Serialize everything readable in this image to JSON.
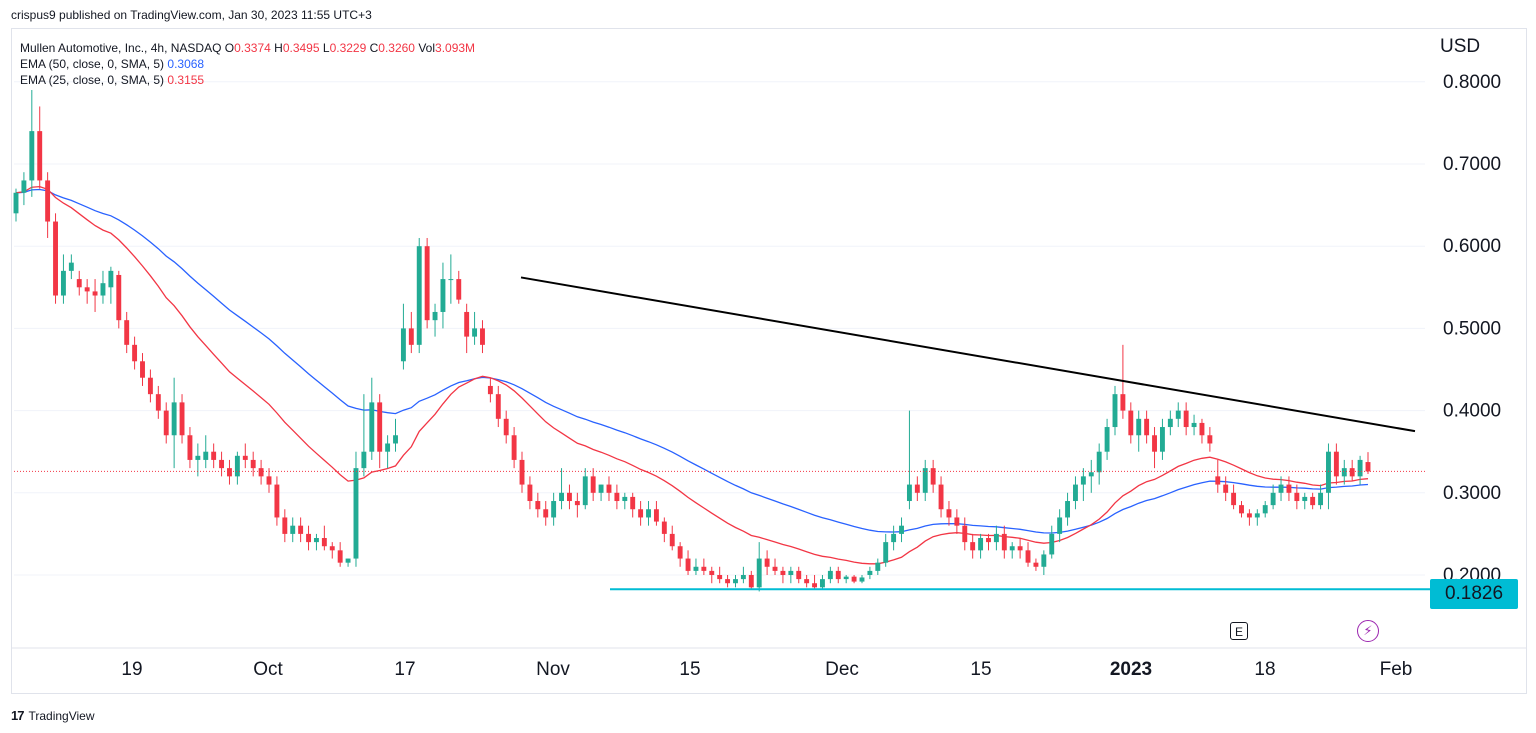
{
  "publisher_line": "crispus9 published on TradingView.com, Jan 30, 2023 11:55 UTC+3",
  "legend": {
    "symbol": "Mullen Automotive, Inc., 4h, NASDAQ",
    "o_label": "O",
    "o_value": "0.3374",
    "h_label": "H",
    "h_value": "0.3495",
    "l_label": "L",
    "l_value": "0.3229",
    "c_label": "C",
    "c_value": "0.3260",
    "vol_label": "Vol",
    "vol_value": "3.093M",
    "ema50_label": "EMA (50, close, 0, SMA, 5)",
    "ema50_value": "0.3068",
    "ema25_label": "EMA (25, close, 0, SMA, 5)",
    "ema25_value": "0.3155"
  },
  "currency": "USD",
  "support_label": "0.1826",
  "earnings_marker": "E",
  "brand": "TradingView",
  "colors": {
    "up": "#22ab94",
    "down": "#f23645",
    "ema50": "#2962ff",
    "ema25": "#f23645",
    "trendline": "#000000",
    "support": "#00bcd4",
    "grid": "#f0f3fa",
    "axis_text": "#131722"
  },
  "chart_data": {
    "type": "candlestick",
    "yaxis": {
      "ticks": [
        "0.2000",
        "0.3000",
        "0.4000",
        "0.5000",
        "0.6000",
        "0.7000",
        "0.8000"
      ],
      "ylim": [
        0.12,
        0.86
      ]
    },
    "xaxis": {
      "ticks": [
        "19",
        "Oct",
        "17",
        "Nov",
        "15",
        "Dec",
        "15",
        "2023",
        "18",
        "Feb"
      ]
    },
    "last_close": 0.326,
    "support_level": 0.1826,
    "trendline": {
      "from": {
        "date": "Oct 28",
        "price": 0.562
      },
      "to": {
        "date": "Jan 31",
        "price": 0.375
      }
    },
    "ohlc": [
      [
        0.64,
        0.67,
        0.63,
        0.665
      ],
      [
        0.665,
        0.69,
        0.65,
        0.68
      ],
      [
        0.68,
        0.79,
        0.66,
        0.74
      ],
      [
        0.74,
        0.77,
        0.67,
        0.68
      ],
      [
        0.68,
        0.69,
        0.61,
        0.63
      ],
      [
        0.63,
        0.64,
        0.53,
        0.54
      ],
      [
        0.54,
        0.59,
        0.53,
        0.57
      ],
      [
        0.57,
        0.59,
        0.56,
        0.58
      ],
      [
        0.56,
        0.57,
        0.54,
        0.55
      ],
      [
        0.55,
        0.56,
        0.53,
        0.545
      ],
      [
        0.545,
        0.56,
        0.52,
        0.54
      ],
      [
        0.54,
        0.57,
        0.53,
        0.555
      ],
      [
        0.55,
        0.575,
        0.53,
        0.57
      ],
      [
        0.565,
        0.57,
        0.5,
        0.51
      ],
      [
        0.51,
        0.52,
        0.47,
        0.48
      ],
      [
        0.48,
        0.49,
        0.45,
        0.46
      ],
      [
        0.46,
        0.47,
        0.43,
        0.44
      ],
      [
        0.44,
        0.45,
        0.41,
        0.42
      ],
      [
        0.42,
        0.43,
        0.39,
        0.4
      ],
      [
        0.4,
        0.41,
        0.36,
        0.37
      ],
      [
        0.37,
        0.44,
        0.33,
        0.41
      ],
      [
        0.41,
        0.42,
        0.36,
        0.37
      ],
      [
        0.37,
        0.38,
        0.33,
        0.34
      ],
      [
        0.34,
        0.36,
        0.32,
        0.345
      ],
      [
        0.34,
        0.37,
        0.33,
        0.35
      ],
      [
        0.35,
        0.36,
        0.33,
        0.34
      ],
      [
        0.34,
        0.35,
        0.32,
        0.33
      ],
      [
        0.33,
        0.34,
        0.31,
        0.32
      ],
      [
        0.32,
        0.35,
        0.31,
        0.345
      ],
      [
        0.345,
        0.36,
        0.33,
        0.34
      ],
      [
        0.34,
        0.35,
        0.32,
        0.33
      ],
      [
        0.33,
        0.34,
        0.31,
        0.32
      ],
      [
        0.32,
        0.33,
        0.3,
        0.31
      ],
      [
        0.31,
        0.32,
        0.26,
        0.27
      ],
      [
        0.27,
        0.28,
        0.24,
        0.25
      ],
      [
        0.25,
        0.27,
        0.24,
        0.26
      ],
      [
        0.26,
        0.27,
        0.24,
        0.25
      ],
      [
        0.25,
        0.26,
        0.23,
        0.24
      ],
      [
        0.24,
        0.25,
        0.23,
        0.245
      ],
      [
        0.245,
        0.26,
        0.23,
        0.235
      ],
      [
        0.235,
        0.24,
        0.22,
        0.23
      ],
      [
        0.23,
        0.24,
        0.21,
        0.215
      ],
      [
        0.215,
        0.22,
        0.21,
        0.22
      ],
      [
        0.22,
        0.35,
        0.21,
        0.33
      ],
      [
        0.33,
        0.42,
        0.32,
        0.35
      ],
      [
        0.35,
        0.44,
        0.34,
        0.41
      ],
      [
        0.41,
        0.42,
        0.33,
        0.35
      ],
      [
        0.35,
        0.37,
        0.33,
        0.36
      ],
      [
        0.36,
        0.39,
        0.35,
        0.37
      ],
      [
        0.46,
        0.53,
        0.45,
        0.5
      ],
      [
        0.5,
        0.52,
        0.47,
        0.48
      ],
      [
        0.48,
        0.61,
        0.47,
        0.6
      ],
      [
        0.6,
        0.61,
        0.5,
        0.51
      ],
      [
        0.51,
        0.53,
        0.49,
        0.52
      ],
      [
        0.52,
        0.58,
        0.5,
        0.56
      ],
      [
        0.56,
        0.59,
        0.53,
        0.56
      ],
      [
        0.56,
        0.57,
        0.53,
        0.535
      ],
      [
        0.52,
        0.53,
        0.47,
        0.49
      ],
      [
        0.49,
        0.52,
        0.48,
        0.5
      ],
      [
        0.5,
        0.51,
        0.47,
        0.48
      ],
      [
        0.43,
        0.44,
        0.41,
        0.42
      ],
      [
        0.42,
        0.43,
        0.38,
        0.39
      ],
      [
        0.39,
        0.4,
        0.36,
        0.37
      ],
      [
        0.37,
        0.38,
        0.33,
        0.34
      ],
      [
        0.34,
        0.35,
        0.3,
        0.31
      ],
      [
        0.31,
        0.32,
        0.28,
        0.29
      ],
      [
        0.29,
        0.3,
        0.27,
        0.28
      ],
      [
        0.28,
        0.29,
        0.26,
        0.27
      ],
      [
        0.27,
        0.3,
        0.26,
        0.29
      ],
      [
        0.29,
        0.33,
        0.28,
        0.3
      ],
      [
        0.3,
        0.31,
        0.28,
        0.29
      ],
      [
        0.29,
        0.3,
        0.27,
        0.285
      ],
      [
        0.285,
        0.33,
        0.28,
        0.32
      ],
      [
        0.32,
        0.33,
        0.29,
        0.3
      ],
      [
        0.3,
        0.31,
        0.29,
        0.31
      ],
      [
        0.31,
        0.32,
        0.29,
        0.3
      ],
      [
        0.3,
        0.31,
        0.28,
        0.29
      ],
      [
        0.29,
        0.3,
        0.28,
        0.295
      ],
      [
        0.295,
        0.3,
        0.27,
        0.28
      ],
      [
        0.28,
        0.29,
        0.26,
        0.27
      ],
      [
        0.27,
        0.29,
        0.26,
        0.28
      ],
      [
        0.28,
        0.29,
        0.26,
        0.265
      ],
      [
        0.265,
        0.27,
        0.24,
        0.25
      ],
      [
        0.25,
        0.26,
        0.23,
        0.235
      ],
      [
        0.235,
        0.24,
        0.21,
        0.22
      ],
      [
        0.22,
        0.23,
        0.2,
        0.205
      ],
      [
        0.205,
        0.22,
        0.2,
        0.21
      ],
      [
        0.21,
        0.22,
        0.2,
        0.205
      ],
      [
        0.205,
        0.21,
        0.19,
        0.2
      ],
      [
        0.2,
        0.21,
        0.19,
        0.195
      ],
      [
        0.195,
        0.2,
        0.185,
        0.19
      ],
      [
        0.19,
        0.2,
        0.185,
        0.195
      ],
      [
        0.195,
        0.21,
        0.19,
        0.2
      ],
      [
        0.2,
        0.205,
        0.183,
        0.185
      ],
      [
        0.185,
        0.24,
        0.18,
        0.22
      ],
      [
        0.22,
        0.23,
        0.2,
        0.21
      ],
      [
        0.21,
        0.22,
        0.2,
        0.205
      ],
      [
        0.205,
        0.21,
        0.19,
        0.2
      ],
      [
        0.2,
        0.21,
        0.19,
        0.205
      ],
      [
        0.205,
        0.21,
        0.19,
        0.195
      ],
      [
        0.195,
        0.2,
        0.185,
        0.19
      ],
      [
        0.19,
        0.2,
        0.183,
        0.185
      ],
      [
        0.185,
        0.2,
        0.182,
        0.195
      ],
      [
        0.195,
        0.21,
        0.19,
        0.205
      ],
      [
        0.205,
        0.21,
        0.19,
        0.195
      ],
      [
        0.195,
        0.2,
        0.19,
        0.198
      ],
      [
        0.198,
        0.2,
        0.19,
        0.192
      ],
      [
        0.192,
        0.2,
        0.19,
        0.197
      ],
      [
        0.2,
        0.21,
        0.195,
        0.205
      ],
      [
        0.205,
        0.22,
        0.2,
        0.215
      ],
      [
        0.215,
        0.25,
        0.21,
        0.24
      ],
      [
        0.24,
        0.26,
        0.23,
        0.25
      ],
      [
        0.25,
        0.27,
        0.24,
        0.26
      ],
      [
        0.29,
        0.4,
        0.28,
        0.31
      ],
      [
        0.31,
        0.32,
        0.29,
        0.3
      ],
      [
        0.3,
        0.34,
        0.29,
        0.33
      ],
      [
        0.33,
        0.34,
        0.3,
        0.31
      ],
      [
        0.31,
        0.32,
        0.27,
        0.28
      ],
      [
        0.28,
        0.29,
        0.26,
        0.27
      ],
      [
        0.27,
        0.28,
        0.25,
        0.26
      ],
      [
        0.26,
        0.27,
        0.23,
        0.24
      ],
      [
        0.24,
        0.25,
        0.22,
        0.23
      ],
      [
        0.23,
        0.25,
        0.22,
        0.245
      ],
      [
        0.245,
        0.25,
        0.23,
        0.24
      ],
      [
        0.24,
        0.26,
        0.23,
        0.25
      ],
      [
        0.25,
        0.26,
        0.22,
        0.23
      ],
      [
        0.23,
        0.24,
        0.22,
        0.235
      ],
      [
        0.235,
        0.245,
        0.22,
        0.23
      ],
      [
        0.23,
        0.24,
        0.21,
        0.215
      ],
      [
        0.215,
        0.22,
        0.205,
        0.21
      ],
      [
        0.21,
        0.23,
        0.2,
        0.225
      ],
      [
        0.225,
        0.26,
        0.22,
        0.25
      ],
      [
        0.25,
        0.28,
        0.24,
        0.27
      ],
      [
        0.27,
        0.3,
        0.26,
        0.29
      ],
      [
        0.29,
        0.32,
        0.28,
        0.31
      ],
      [
        0.31,
        0.33,
        0.29,
        0.32
      ],
      [
        0.32,
        0.34,
        0.3,
        0.325
      ],
      [
        0.325,
        0.36,
        0.31,
        0.35
      ],
      [
        0.35,
        0.39,
        0.34,
        0.38
      ],
      [
        0.38,
        0.43,
        0.37,
        0.42
      ],
      [
        0.42,
        0.48,
        0.39,
        0.4
      ],
      [
        0.4,
        0.41,
        0.36,
        0.37
      ],
      [
        0.37,
        0.4,
        0.35,
        0.39
      ],
      [
        0.39,
        0.4,
        0.36,
        0.37
      ],
      [
        0.37,
        0.38,
        0.33,
        0.35
      ],
      [
        0.35,
        0.39,
        0.34,
        0.38
      ],
      [
        0.38,
        0.4,
        0.37,
        0.39
      ],
      [
        0.39,
        0.41,
        0.38,
        0.4
      ],
      [
        0.4,
        0.41,
        0.37,
        0.38
      ],
      [
        0.38,
        0.395,
        0.37,
        0.385
      ],
      [
        0.385,
        0.39,
        0.36,
        0.37
      ],
      [
        0.37,
        0.38,
        0.35,
        0.36
      ],
      [
        0.32,
        0.34,
        0.3,
        0.31
      ],
      [
        0.31,
        0.32,
        0.29,
        0.3
      ],
      [
        0.3,
        0.31,
        0.28,
        0.285
      ],
      [
        0.285,
        0.29,
        0.27,
        0.275
      ],
      [
        0.275,
        0.28,
        0.26,
        0.27
      ],
      [
        0.27,
        0.28,
        0.26,
        0.275
      ],
      [
        0.275,
        0.29,
        0.27,
        0.285
      ],
      [
        0.285,
        0.31,
        0.28,
        0.3
      ],
      [
        0.3,
        0.32,
        0.29,
        0.31
      ],
      [
        0.31,
        0.32,
        0.29,
        0.3
      ],
      [
        0.3,
        0.31,
        0.28,
        0.29
      ],
      [
        0.29,
        0.3,
        0.28,
        0.295
      ],
      [
        0.295,
        0.3,
        0.28,
        0.285
      ],
      [
        0.285,
        0.31,
        0.28,
        0.3
      ],
      [
        0.3,
        0.36,
        0.28,
        0.35
      ],
      [
        0.35,
        0.36,
        0.31,
        0.32
      ],
      [
        0.32,
        0.34,
        0.31,
        0.33
      ],
      [
        0.33,
        0.34,
        0.315,
        0.32
      ],
      [
        0.32,
        0.345,
        0.31,
        0.34
      ],
      [
        0.3374,
        0.3495,
        0.3229,
        0.326
      ]
    ]
  }
}
